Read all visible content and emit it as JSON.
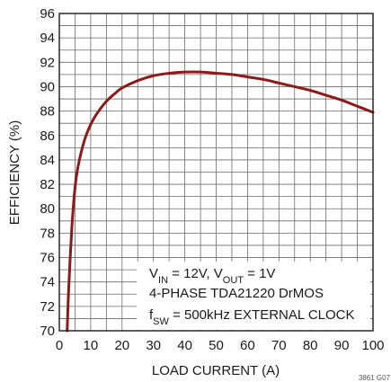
{
  "chart_data": {
    "type": "line",
    "xlabel": "LOAD CURRENT (A)",
    "ylabel": "EFFICIENCY (%)",
    "xlim": [
      0,
      100
    ],
    "ylim": [
      70,
      96
    ],
    "xticks": [
      "0",
      "10",
      "20",
      "30",
      "40",
      "50",
      "60",
      "70",
      "80",
      "90",
      "100"
    ],
    "yticks": [
      "70",
      "72",
      "74",
      "76",
      "78",
      "80",
      "82",
      "84",
      "86",
      "88",
      "90",
      "92",
      "94",
      "96"
    ],
    "grid": true,
    "annotation": {
      "line1": "V₀ = 12V, V₀ = 1V",
      "line1_parts": [
        "V",
        "IN",
        " = 12V, V",
        "OUT",
        " = 1V"
      ],
      "line2": "4-PHASE TDA21220 DrMOS",
      "line3_parts": [
        "f",
        "SW",
        " = 500kHz EXTERNAL CLOCK"
      ]
    },
    "figure_ref": "3861 G07",
    "series": [
      {
        "color": "#8b1a1a",
        "x": [
          2.5,
          3,
          4,
          5,
          6,
          8,
          10,
          12,
          15,
          18,
          20,
          25,
          30,
          35,
          40,
          45,
          50,
          55,
          60,
          65,
          70,
          75,
          80,
          85,
          90,
          95,
          100
        ],
        "y": [
          70.0,
          73.5,
          78.5,
          81.7,
          83.5,
          85.6,
          86.9,
          87.8,
          88.8,
          89.5,
          89.9,
          90.5,
          90.9,
          91.1,
          91.2,
          91.2,
          91.1,
          91.0,
          90.8,
          90.6,
          90.3,
          90.0,
          89.7,
          89.3,
          88.9,
          88.4,
          87.9
        ]
      }
    ]
  }
}
